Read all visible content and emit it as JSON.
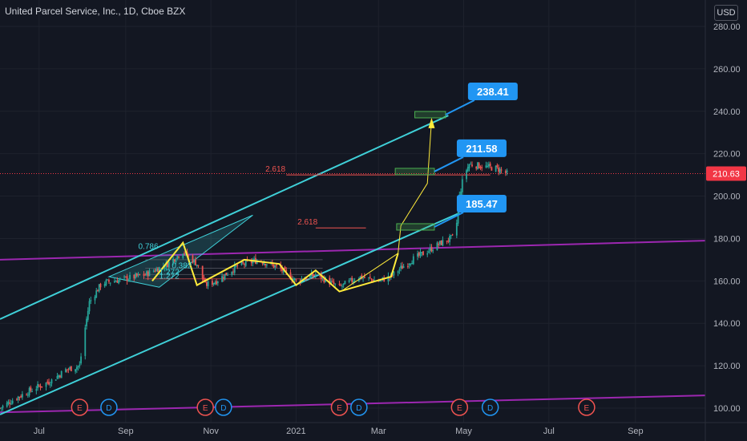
{
  "header": {
    "title": "United Parcel Service, Inc., 1D, Cboe BZX",
    "currency": "USD"
  },
  "colors": {
    "background": "#131722",
    "up": "#26a69a",
    "down": "#ef5350",
    "channel": "#3fd0d8",
    "support_line": "#9c27b0",
    "pattern": "#ffeb3b",
    "callout": "#2196f3",
    "target_box": "#4caf50",
    "price_tag": "#f23645"
  },
  "chart_data": {
    "type": "candlestick",
    "y_axis": {
      "min": 100,
      "max": 280,
      "ticks": [
        100,
        120,
        140,
        160,
        180,
        200,
        220,
        240,
        260,
        280
      ],
      "tick_labels": [
        "100.00",
        "120.00",
        "140.00",
        "160.00",
        "180.00",
        "200.00",
        "220.00",
        "240.00",
        "260.00",
        "280.00"
      ]
    },
    "x_axis": {
      "start": "2020-06-03",
      "end": "2021-10-21",
      "ticks": [
        {
          "date": "2020-07-01",
          "label": "Jul"
        },
        {
          "date": "2020-09-01",
          "label": "Sep"
        },
        {
          "date": "2020-11-01",
          "label": "Nov"
        },
        {
          "date": "2021-01-01",
          "label": "2021"
        },
        {
          "date": "2021-03-01",
          "label": "Mar"
        },
        {
          "date": "2021-05-01",
          "label": "May"
        },
        {
          "date": "2021-07-01",
          "label": "Jul"
        },
        {
          "date": "2021-09-01",
          "label": "Sep"
        }
      ]
    },
    "last_price": {
      "value": 210.63,
      "label": "210.63"
    },
    "price_path": [
      {
        "date": "2020-06-03",
        "price": 100
      },
      {
        "date": "2020-06-15",
        "price": 105
      },
      {
        "date": "2020-06-30",
        "price": 110
      },
      {
        "date": "2020-07-10",
        "price": 113
      },
      {
        "date": "2020-07-20",
        "price": 118
      },
      {
        "date": "2020-07-30",
        "price": 120
      },
      {
        "date": "2020-08-03",
        "price": 138
      },
      {
        "date": "2020-08-06",
        "price": 150
      },
      {
        "date": "2020-08-15",
        "price": 159
      },
      {
        "date": "2020-09-01",
        "price": 161
      },
      {
        "date": "2020-09-15",
        "price": 163
      },
      {
        "date": "2020-10-01",
        "price": 168
      },
      {
        "date": "2020-10-12",
        "price": 174
      },
      {
        "date": "2020-10-22",
        "price": 168
      },
      {
        "date": "2020-10-28",
        "price": 158
      },
      {
        "date": "2020-11-05",
        "price": 160
      },
      {
        "date": "2020-11-20",
        "price": 167
      },
      {
        "date": "2020-12-05",
        "price": 170
      },
      {
        "date": "2020-12-20",
        "price": 166
      },
      {
        "date": "2021-01-01",
        "price": 160
      },
      {
        "date": "2021-01-15",
        "price": 163
      },
      {
        "date": "2021-02-01",
        "price": 157
      },
      {
        "date": "2021-02-15",
        "price": 162
      },
      {
        "date": "2021-03-01",
        "price": 160
      },
      {
        "date": "2021-03-10",
        "price": 162
      },
      {
        "date": "2021-03-15",
        "price": 165
      },
      {
        "date": "2021-03-25",
        "price": 170
      },
      {
        "date": "2021-04-05",
        "price": 174
      },
      {
        "date": "2021-04-15",
        "price": 178
      },
      {
        "date": "2021-04-25",
        "price": 181
      },
      {
        "date": "2021-04-28",
        "price": 200
      },
      {
        "date": "2021-05-01",
        "price": 210
      },
      {
        "date": "2021-05-05",
        "price": 215
      },
      {
        "date": "2021-05-15",
        "price": 214
      },
      {
        "date": "2021-05-25",
        "price": 213
      },
      {
        "date": "2021-06-01",
        "price": 210.63
      }
    ],
    "drawings": {
      "channel_upper": [
        {
          "date": "2020-06-03",
          "price": 142
        },
        {
          "date": "2021-04-20",
          "price": 238
        }
      ],
      "channel_lower": [
        {
          "date": "2020-06-03",
          "price": 97
        },
        {
          "date": "2021-04-28",
          "price": 192
        }
      ],
      "purple_upper": [
        {
          "date": "2020-06-03",
          "price": 170
        },
        {
          "date": "2021-10-21",
          "price": 179
        }
      ],
      "purple_lower": [
        {
          "date": "2020-06-03",
          "price": 98
        },
        {
          "date": "2021-10-21",
          "price": 106
        }
      ],
      "targets": [
        {
          "label": "185.47",
          "value": 185.47,
          "box_date": "2021-03-14",
          "box_end": "2021-04-10"
        },
        {
          "label": "211.58",
          "value": 211.58,
          "box_date": "2021-03-13",
          "box_end": "2021-04-10"
        },
        {
          "label": "238.41",
          "value": 238.41,
          "box_date": "2021-03-27",
          "box_end": "2021-04-18"
        }
      ],
      "fib_labels": [
        {
          "label": "2.618",
          "date": "2020-12-10",
          "price": 210
        },
        {
          "label": "2.618",
          "date": "2021-01-02",
          "price": 185
        }
      ],
      "pattern_labels": [
        "0.786",
        "0.382",
        "1.272",
        "1.272"
      ],
      "earnings_markers": [
        "E",
        "D",
        "E",
        "D",
        "E",
        "D",
        "E",
        "D",
        "E"
      ]
    }
  }
}
